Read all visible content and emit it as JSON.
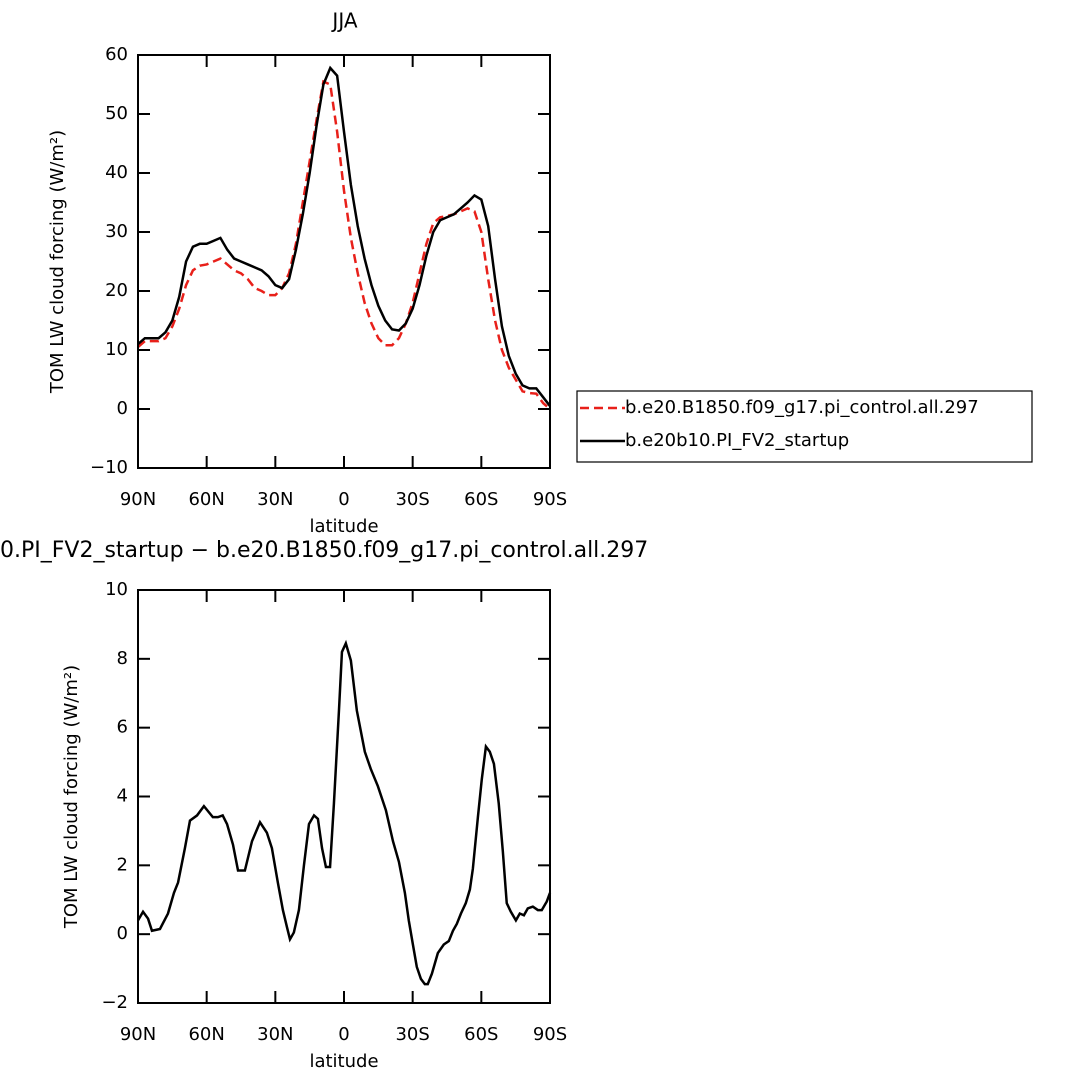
{
  "chart_data": [
    {
      "type": "line",
      "title": "JJA",
      "xlabel": "latitude",
      "ylabel": "TOM LW cloud forcing (W/m²)",
      "x": [
        90,
        87,
        84,
        81,
        78,
        75,
        72,
        69,
        66,
        63,
        60,
        57,
        54,
        51,
        48,
        45,
        42,
        39,
        36,
        33,
        30,
        27,
        24,
        21,
        18,
        15,
        12,
        9,
        6,
        3,
        0,
        -3,
        -6,
        -9,
        -12,
        -15,
        -18,
        -21,
        -24,
        -27,
        -30,
        -33,
        -36,
        -39,
        -42,
        -45,
        -48,
        -51,
        -54,
        -57,
        -60,
        -63,
        -66,
        -69,
        -72,
        -75,
        -78,
        -81,
        -84,
        -87,
        -90
      ],
      "series": [
        {
          "name": "b.e20.B1850.f09_g17.pi_control.all.297",
          "color": "#e8201a",
          "line_style": "dashed",
          "values": [
            10.5,
            11.5,
            11.5,
            11.5,
            12,
            14,
            17,
            21,
            23.5,
            24.3,
            24.5,
            25,
            25.5,
            24.5,
            23.5,
            23,
            22,
            20.5,
            20,
            19.3,
            19.3,
            20.5,
            23,
            28,
            35,
            42,
            49,
            55.5,
            55,
            47,
            37,
            29,
            23,
            18,
            14.5,
            12,
            10.8,
            10.8,
            12,
            14.5,
            18,
            23,
            28,
            31.5,
            32.5,
            32.7,
            33,
            33.5,
            34,
            33.5,
            30,
            22,
            15,
            10,
            7,
            5,
            3,
            2.7,
            2.6,
            1,
            0
          ]
        },
        {
          "name": "b.e20b10.PI_FV2_startup",
          "color": "#000000",
          "line_style": "solid",
          "values": [
            11,
            12,
            12,
            12,
            13,
            15,
            19,
            25,
            27.5,
            28,
            28,
            28.5,
            29,
            27,
            25.5,
            25,
            24.5,
            24,
            23.5,
            22.5,
            21,
            20.5,
            22,
            27,
            33,
            40,
            48,
            55,
            57.8,
            56.5,
            47,
            38,
            31,
            25.5,
            21,
            17.5,
            15,
            13.5,
            13.3,
            14.5,
            17,
            21,
            26,
            30,
            32,
            32.5,
            33,
            34,
            35,
            36.2,
            35.5,
            31,
            22,
            14,
            9,
            6,
            4,
            3.5,
            3.5,
            2,
            0.5
          ]
        }
      ],
      "xlim": [
        90,
        -90
      ],
      "xticks": [
        {
          "value": 90,
          "label": "90N"
        },
        {
          "value": 60,
          "label": "60N"
        },
        {
          "value": 30,
          "label": "30N"
        },
        0,
        {
          "value": -30,
          "label": "30S"
        },
        {
          "value": -60,
          "label": "60S"
        },
        {
          "value": -90,
          "label": "90S"
        }
      ],
      "ylim": [
        -10,
        60
      ],
      "yticks": [
        {
          "value": -10,
          "label": "−10"
        },
        0,
        10,
        20,
        30,
        40,
        50,
        60
      ],
      "legend": "right"
    },
    {
      "type": "line",
      "title": "0.PI_FV2_startup − b.e20.B1850.f09_g17.pi_control.all.297",
      "xlabel": "latitude",
      "ylabel": "TOM LW cloud forcing (W/m²)",
      "x": [
        90,
        87.8,
        85.6,
        83.9,
        80.4,
        76.9,
        74.3,
        72.5,
        69.5,
        67.3,
        64.2,
        61.2,
        57.3,
        55.1,
        53,
        51.1,
        48.5,
        46.3,
        43.3,
        40.2,
        36.7,
        33.7,
        31.5,
        28.9,
        26.7,
        24.9,
        23.6,
        21.9,
        19.7,
        17.5,
        15.3,
        13.1,
        11.4,
        9.6,
        7.9,
        6.1,
        4.4,
        2.2,
        0.9,
        -0.8,
        -3,
        -5.6,
        -9.1,
        -11.7,
        -14.8,
        -18.3,
        -21.4,
        -24,
        -26.6,
        -28.3,
        -30.1,
        -31.8,
        -33.6,
        -35.3,
        -36.6,
        -38.4,
        -41,
        -43.6,
        -45.8,
        -47.6,
        -49.3,
        -51.1,
        -53.2,
        -55,
        -56.3,
        -58.5,
        -60.2,
        -62,
        -63.7,
        -65.5,
        -67.6,
        -69.4,
        -71.1,
        -72.9,
        -75.1,
        -76.8,
        -78.6,
        -80.3,
        -82.5,
        -84.7,
        -86.4,
        -88.6,
        -90
      ],
      "series": [
        {
          "color": "#000000",
          "line_style": "solid",
          "values": [
            0.4,
            0.65,
            0.45,
            0.1,
            0.15,
            0.6,
            1.2,
            1.5,
            2.5,
            3.3,
            3.45,
            3.72,
            3.4,
            3.4,
            3.45,
            3.2,
            2.6,
            1.85,
            1.85,
            2.7,
            3.25,
            2.95,
            2.5,
            1.5,
            0.7,
            0.2,
            -0.15,
            0.05,
            0.7,
            2,
            3.2,
            3.45,
            3.35,
            2.5,
            1.95,
            1.95,
            3.8,
            6.5,
            8.2,
            8.45,
            7.95,
            6.5,
            5.3,
            4.8,
            4.3,
            3.6,
            2.7,
            2.1,
            1.2,
            0.4,
            -0.3,
            -0.95,
            -1.3,
            -1.45,
            -1.45,
            -1.15,
            -0.55,
            -0.3,
            -0.2,
            0.1,
            0.3,
            0.6,
            0.9,
            1.3,
            1.9,
            3.4,
            4.5,
            5.45,
            5.3,
            4.95,
            3.8,
            2.4,
            0.9,
            0.65,
            0.4,
            0.6,
            0.55,
            0.75,
            0.8,
            0.7,
            0.7,
            0.95,
            1.2
          ]
        }
      ],
      "xlim": [
        90,
        -90
      ],
      "xticks": [
        {
          "value": 90,
          "label": "90N"
        },
        {
          "value": 60,
          "label": "60N"
        },
        {
          "value": 30,
          "label": "30N"
        },
        0,
        {
          "value": -30,
          "label": "30S"
        },
        {
          "value": -60,
          "label": "60S"
        },
        {
          "value": -90,
          "label": "90S"
        }
      ],
      "ylim": [
        -2,
        10
      ],
      "yticks": [
        {
          "value": -2,
          "label": "−2"
        },
        0,
        2,
        4,
        6,
        8,
        10
      ]
    }
  ]
}
